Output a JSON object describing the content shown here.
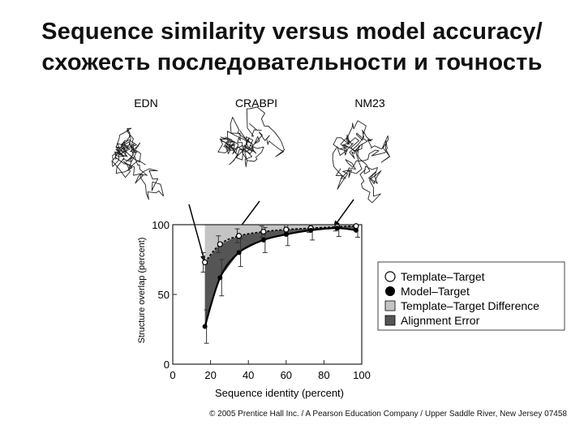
{
  "title_line1": "Sequence similarity versus model accuracy/",
  "title_line2": "схожесть последовательности и точность",
  "structures": [
    {
      "label": "EDN",
      "icon": "protein-ribbon-icon"
    },
    {
      "label": "CRABPI",
      "icon": "protein-ribbon-icon"
    },
    {
      "label": "NM23",
      "icon": "protein-ribbon-icon"
    }
  ],
  "footer": "© 2005 Prentice Hall Inc. / A Pearson Education Company / Upper Saddle River, New Jersey 07458",
  "chart_data": {
    "type": "line",
    "title": "",
    "xlabel": "Sequence identity (percent)",
    "ylabel": "Structure overlap (percent)",
    "xlim": [
      0,
      100
    ],
    "ylim": [
      0,
      100
    ],
    "xticks": [
      0,
      20,
      40,
      60,
      80,
      100
    ],
    "yticks": [
      0,
      50,
      100
    ],
    "grid": false,
    "legend_position": "right",
    "legend": [
      {
        "label": "Template–Target",
        "marker": "open-circle"
      },
      {
        "label": "Model–Target",
        "marker": "filled-circle"
      },
      {
        "label": "Template–Target Difference",
        "marker": "light-gray-square"
      },
      {
        "label": "Alignment Error",
        "marker": "dark-gray-square"
      }
    ],
    "series": [
      {
        "name": "Template–Target",
        "marker": "open-circle",
        "x": [
          17,
          25,
          35,
          48,
          60,
          73,
          87,
          97
        ],
        "y": [
          73,
          86,
          92,
          95,
          96.5,
          97.5,
          98.5,
          99
        ],
        "err": [
          7,
          6,
          5,
          4,
          4,
          3,
          3,
          2
        ]
      },
      {
        "name": "Model–Target",
        "marker": "filled-circle",
        "x": [
          17,
          25,
          35,
          48,
          60,
          73,
          87,
          97
        ],
        "y": [
          27,
          62,
          80,
          89,
          93,
          96,
          97.5,
          96
        ],
        "err": [
          12,
          13,
          10,
          9,
          8,
          7,
          6,
          5
        ]
      }
    ],
    "shaded_regions": [
      {
        "name": "Template–Target Difference",
        "color": "#c4c4c4",
        "between": "100 and Template–Target",
        "x_start": 17
      },
      {
        "name": "Alignment Error",
        "color": "#555555",
        "between": "Template–Target and Model–Target",
        "x_start": 17
      }
    ],
    "callouts": [
      {
        "from": "EDN",
        "to_x": 17,
        "to_y": 73
      },
      {
        "from": "CRABPI",
        "to_x": 30,
        "to_y": 88
      },
      {
        "from": "NM23",
        "to_x": 85,
        "to_y": 98
      }
    ]
  },
  "colors": {
    "difference_fill": "#c4c4c4",
    "alignment_fill": "#555555",
    "line": "#000000"
  }
}
